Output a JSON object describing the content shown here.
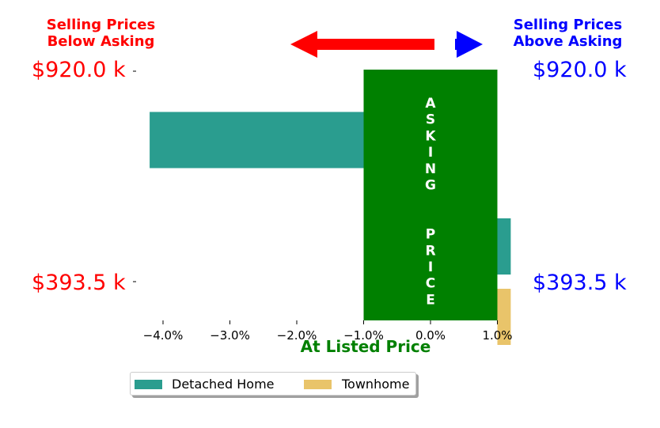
{
  "header": {
    "left_text": "Selling Prices\nBelow Asking",
    "right_text": "Selling Prices\nAbove Asking"
  },
  "price_labels": {
    "top_left": "$920.0 k",
    "top_right": "$920.0 k",
    "bottom_left": "$393.5 k",
    "bottom_right": "$393.5 k"
  },
  "asking_price_text": "ASKING  PRICE",
  "colors": {
    "left_text": "#ff0000",
    "right_text": "#0000ff",
    "asking_band": "#008000",
    "left_arrow": "#ff0000",
    "right_arrow": "#0000ff",
    "detached": "#2a9d8f",
    "townhome": "#e9c46a"
  },
  "chart_data": {
    "type": "bar",
    "orientation": "horizontal",
    "xlabel": "At Listed Price",
    "ylabel": "",
    "xlim": [
      -4.3,
      1.2
    ],
    "xticks": [
      -4,
      -3,
      -2,
      -1,
      0,
      1
    ],
    "xtick_labels": [
      "−4.0%",
      "−3.0%",
      "−2.0%",
      "−1.0%",
      "0.0%",
      "1.0%"
    ],
    "asking_band": [
      -1.0,
      1.0
    ],
    "grid": false,
    "legend_position": "bottom-center",
    "groups": [
      "$920.0 k",
      "$393.5 k"
    ],
    "series": [
      {
        "name": "Detached Home",
        "values": [
          -4.2,
          1.2
        ]
      },
      {
        "name": "Townhome",
        "values": [
          null,
          1.2
        ]
      }
    ]
  }
}
